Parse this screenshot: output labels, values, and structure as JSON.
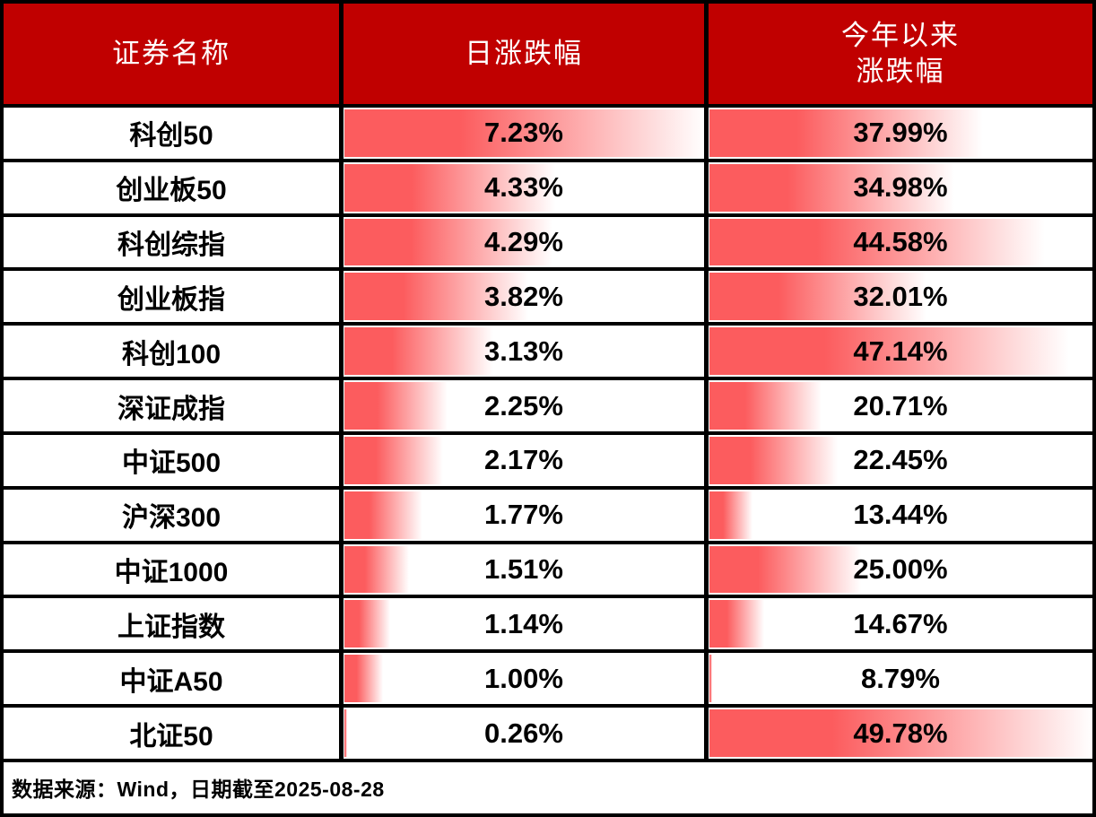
{
  "header": {
    "security_name": "证券名称",
    "daily_change": "日涨跌幅",
    "ytd_change_line1": "今年以来",
    "ytd_change_line2": "涨跌幅"
  },
  "footer": {
    "source_note": "数据来源：Wind，日期截至2025-08-28"
  },
  "colors": {
    "header_bg": "#C00000",
    "header_text": "#FFFFFF",
    "databar_red": "#FC5C5E",
    "border_black": "#000000",
    "row_bg": "#FFFFFF",
    "body_text": "#000000"
  },
  "chart_data": {
    "type": "table",
    "columns": [
      "证券名称",
      "日涨跌幅",
      "今年以来涨跌幅"
    ],
    "bar_style": "red gradient databars; length scaled per column as (value-min)/(max-min)",
    "rows": [
      {
        "name": "科创50",
        "daily": 7.23,
        "daily_display": "7.23%",
        "ytd": 37.99,
        "ytd_display": "37.99%"
      },
      {
        "name": "创业板50",
        "daily": 4.33,
        "daily_display": "4.33%",
        "ytd": 34.98,
        "ytd_display": "34.98%"
      },
      {
        "name": "科创综指",
        "daily": 4.29,
        "daily_display": "4.29%",
        "ytd": 44.58,
        "ytd_display": "44.58%"
      },
      {
        "name": "创业板指",
        "daily": 3.82,
        "daily_display": "3.82%",
        "ytd": 32.01,
        "ytd_display": "32.01%"
      },
      {
        "name": "科创100",
        "daily": 3.13,
        "daily_display": "3.13%",
        "ytd": 47.14,
        "ytd_display": "47.14%"
      },
      {
        "name": "深证成指",
        "daily": 2.25,
        "daily_display": "2.25%",
        "ytd": 20.71,
        "ytd_display": "20.71%"
      },
      {
        "name": "中证500",
        "daily": 2.17,
        "daily_display": "2.17%",
        "ytd": 22.45,
        "ytd_display": "22.45%"
      },
      {
        "name": "沪深300",
        "daily": 1.77,
        "daily_display": "1.77%",
        "ytd": 13.44,
        "ytd_display": "13.44%"
      },
      {
        "name": "中证1000",
        "daily": 1.51,
        "daily_display": "1.51%",
        "ytd": 25.0,
        "ytd_display": "25.00%"
      },
      {
        "name": "上证指数",
        "daily": 1.14,
        "daily_display": "1.14%",
        "ytd": 14.67,
        "ytd_display": "14.67%"
      },
      {
        "name": "中证A50",
        "daily": 1.0,
        "daily_display": "1.00%",
        "ytd": 8.79,
        "ytd_display": "8.79%"
      },
      {
        "name": "北证50",
        "daily": 0.26,
        "daily_display": "0.26%",
        "ytd": 49.78,
        "ytd_display": "49.78%"
      }
    ]
  }
}
